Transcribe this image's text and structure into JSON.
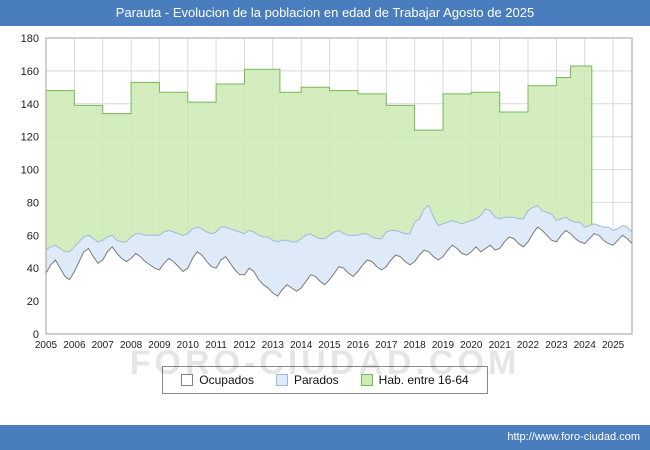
{
  "watermark": "FORO-CIUDAD.COM",
  "footer": {
    "url": "http://www.foro-ciudad.com"
  },
  "chart_data": {
    "type": "area",
    "title": "Parauta - Evolucion de la poblacion en edad de Trabajar Agosto de 2025",
    "xlabel": "",
    "ylabel": "",
    "x_range": [
      2005,
      2025.6667
    ],
    "ylim": [
      0,
      180
    ],
    "y_ticks": [
      0,
      20,
      40,
      60,
      80,
      100,
      120,
      140,
      160,
      180
    ],
    "x_ticks": [
      2005,
      2006,
      2007,
      2008,
      2009,
      2010,
      2011,
      2012,
      2013,
      2014,
      2015,
      2016,
      2017,
      2018,
      2019,
      2020,
      2021,
      2022,
      2023,
      2024,
      2025
    ],
    "grid": true,
    "legend_position": "bottom",
    "x_start": 2005,
    "x_step_years": 0.1666667,
    "series": [
      {
        "name": "Ocupados",
        "fill": "#ffffff",
        "stroke": "#7a7a7a",
        "values": [
          37,
          42,
          45,
          40,
          35,
          33,
          38,
          44,
          50,
          52,
          47,
          43,
          45,
          50,
          53,
          49,
          46,
          44,
          46,
          49,
          47,
          44,
          42,
          40,
          39,
          43,
          46,
          44,
          41,
          38,
          40,
          46,
          50,
          48,
          44,
          41,
          40,
          45,
          47,
          43,
          39,
          36,
          36,
          40,
          38,
          33,
          30,
          28,
          25,
          23,
          27,
          30,
          28,
          26,
          28,
          32,
          36,
          35,
          32,
          30,
          33,
          37,
          41,
          40,
          37,
          35,
          38,
          42,
          45,
          44,
          41,
          39,
          41,
          45,
          48,
          47,
          44,
          42,
          44,
          48,
          51,
          50,
          47,
          45,
          47,
          51,
          54,
          52,
          49,
          48,
          50,
          53,
          50,
          52,
          54,
          51,
          52,
          56,
          59,
          58,
          55,
          53,
          56,
          61,
          65,
          63,
          60,
          57,
          56,
          60,
          63,
          61,
          58,
          56,
          55,
          58,
          61,
          60,
          57,
          55,
          54,
          57,
          60,
          58,
          55
        ]
      },
      {
        "name": "Parados",
        "fill": "#dfeaf8",
        "stroke": "#9fb9d9",
        "stacked_on": "Ocupados",
        "values": [
          14,
          11,
          9,
          12,
          15,
          17,
          15,
          12,
          9,
          8,
          11,
          13,
          12,
          9,
          7,
          8,
          10,
          12,
          13,
          12,
          14,
          16,
          18,
          20,
          21,
          19,
          17,
          18,
          20,
          22,
          21,
          18,
          15,
          16,
          18,
          20,
          22,
          20,
          18,
          21,
          24,
          26,
          25,
          23,
          24,
          27,
          29,
          31,
          32,
          33,
          30,
          27,
          28,
          30,
          30,
          28,
          25,
          24,
          26,
          28,
          27,
          25,
          22,
          21,
          23,
          25,
          22,
          19,
          16,
          15,
          17,
          19,
          21,
          18,
          15,
          15,
          17,
          19,
          24,
          22,
          25,
          28,
          24,
          21,
          20,
          17,
          15,
          16,
          18,
          20,
          19,
          17,
          22,
          24,
          21,
          20,
          18,
          15,
          12,
          13,
          15,
          17,
          19,
          16,
          13,
          12,
          14,
          16,
          13,
          10,
          8,
          8,
          10,
          12,
          10,
          8,
          6,
          6,
          8,
          10,
          9,
          7,
          6,
          7,
          7
        ]
      },
      {
        "name": "Hab. entre 16-64",
        "fill": "#cdeab4",
        "stroke": "#79b857",
        "step": true,
        "end_x": 2024.25,
        "steps": [
          [
            2005,
            148
          ],
          [
            2006,
            139
          ],
          [
            2007,
            134
          ],
          [
            2008,
            153
          ],
          [
            2009,
            147
          ],
          [
            2010,
            141
          ],
          [
            2011,
            152
          ],
          [
            2012,
            161
          ],
          [
            2013.25,
            147
          ],
          [
            2014,
            150
          ],
          [
            2015,
            148
          ],
          [
            2016,
            146
          ],
          [
            2017,
            139
          ],
          [
            2018,
            124
          ],
          [
            2019,
            146
          ],
          [
            2020,
            147
          ],
          [
            2021,
            135
          ],
          [
            2022,
            151
          ],
          [
            2023,
            156
          ],
          [
            2023.5,
            163
          ]
        ]
      }
    ],
    "legend": [
      {
        "label": "Ocupados",
        "fill": "#ffffff",
        "stroke": "#808080"
      },
      {
        "label": "Parados",
        "fill": "#dfeaf8",
        "stroke": "#9fb9d9"
      },
      {
        "label": "Hab. entre 16-64",
        "fill": "#cdeab4",
        "stroke": "#79b857"
      }
    ]
  }
}
